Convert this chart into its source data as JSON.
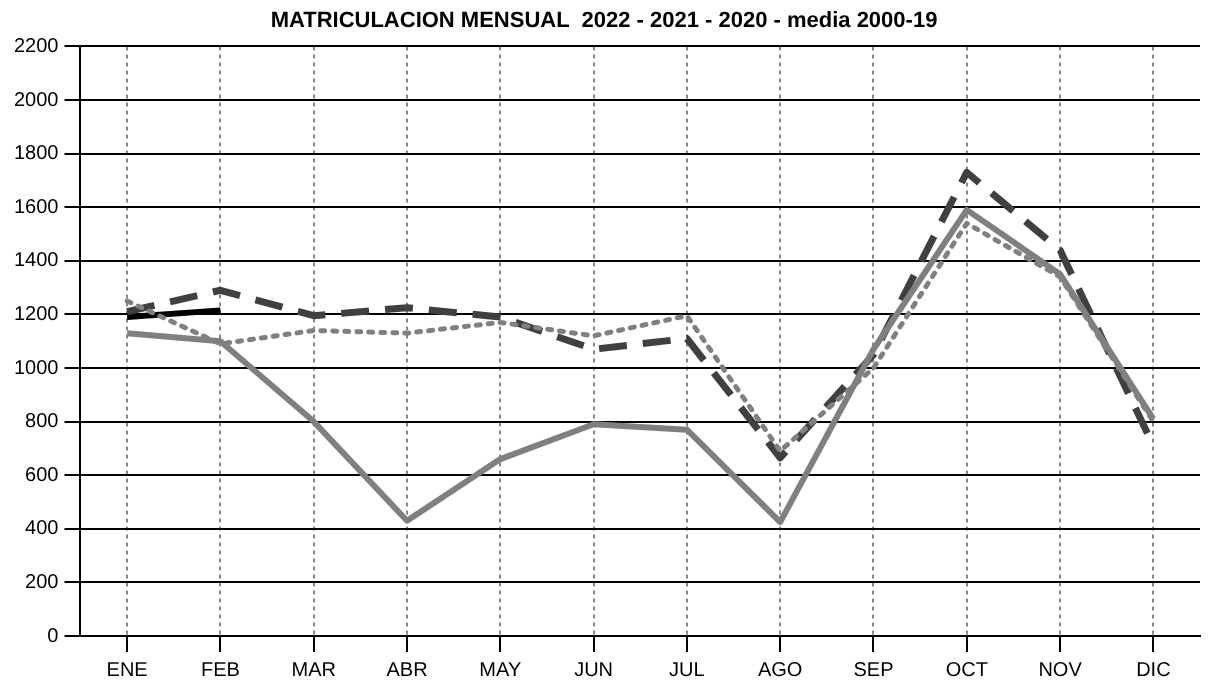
{
  "chart_data": {
    "type": "line",
    "title": "MATRICULACION MENSUAL  2022 - 2021 - 2020 - media 2000-19",
    "categories": [
      "ENE",
      "FEB",
      "MAR",
      "ABR",
      "MAY",
      "JUN",
      "JUL",
      "AGO",
      "SEP",
      "OCT",
      "NOV",
      "DIC"
    ],
    "ylim": [
      0,
      2200
    ],
    "yticks": [
      0,
      200,
      400,
      600,
      800,
      1000,
      1200,
      1400,
      1600,
      1800,
      2000,
      2200
    ],
    "grid": true,
    "legend": false,
    "marker": "none",
    "series": [
      {
        "color": "#808080",
        "line_style": "dotted",
        "values": [
          1250,
          1090,
          1140,
          1130,
          1170,
          1120,
          1195,
          690,
          1000,
          1540,
          1340,
          800
        ]
      },
      {
        "color": "#808080",
        "line_style": "solid",
        "values": [
          1130,
          1100,
          800,
          430,
          660,
          790,
          770,
          425,
          1070,
          1590,
          1350,
          810
        ]
      },
      {
        "color": "#404040",
        "line_style": "dashed",
        "values": [
          1210,
          1290,
          1195,
          1225,
          1190,
          1070,
          1110,
          665,
          1050,
          1730,
          1440,
          710
        ]
      },
      {
        "color": "#000000",
        "line_style": "solid",
        "values": [
          1190,
          1215,
          null,
          null,
          null,
          null,
          null,
          null,
          null,
          null,
          null,
          null
        ]
      }
    ]
  }
}
